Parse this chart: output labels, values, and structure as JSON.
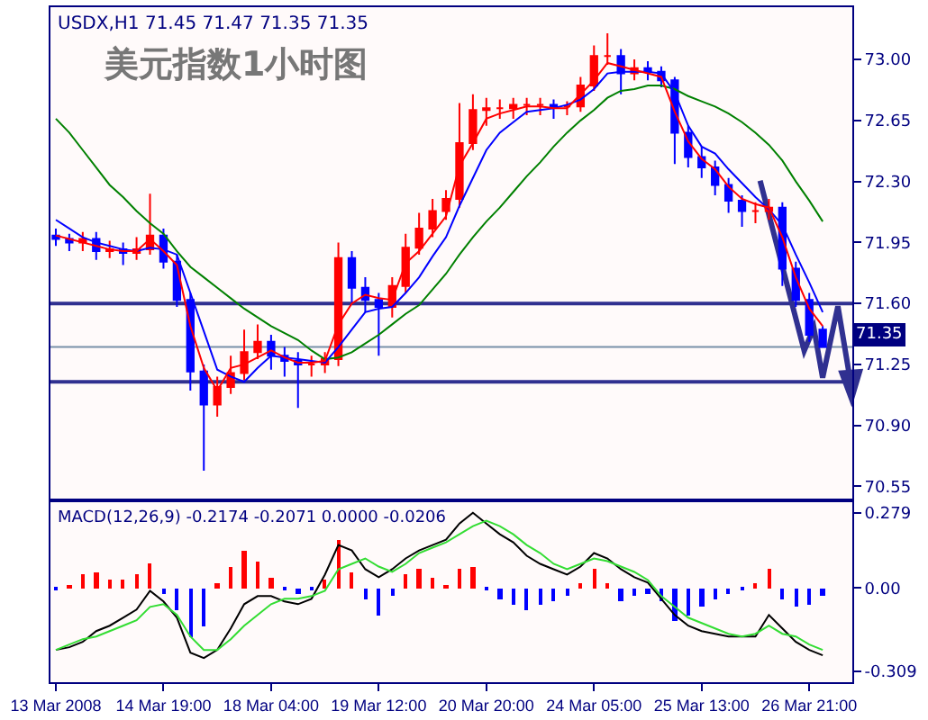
{
  "chart_data": [
    {
      "type": "candlestick",
      "title": "美元指数1小时图",
      "subtitle": "USDX,H1 71.45 71.47 71.35 71.35",
      "categories": [
        null,
        null,
        null,
        null,
        null,
        null,
        null,
        null,
        null,
        null,
        null,
        null,
        null,
        null,
        null,
        null,
        null,
        null,
        null,
        null,
        null,
        null,
        null,
        null,
        null,
        null,
        null,
        null,
        null,
        null,
        null,
        null,
        null,
        null,
        null,
        null,
        null,
        null,
        null,
        null,
        null,
        null,
        null,
        null,
        null,
        null,
        null,
        null,
        null,
        null,
        null,
        null,
        null,
        null,
        null,
        null,
        null,
        null
      ],
      "ohlc": [
        [
          71.99,
          72.03,
          71.93,
          71.97
        ],
        [
          71.97,
          72.0,
          71.9,
          71.95
        ],
        [
          71.95,
          72.01,
          71.9,
          71.97
        ],
        [
          71.97,
          72.01,
          71.85,
          71.9
        ],
        [
          71.9,
          71.96,
          71.86,
          71.91
        ],
        [
          71.91,
          71.95,
          71.82,
          71.89
        ],
        [
          71.89,
          71.98,
          71.85,
          71.91
        ],
        [
          71.91,
          72.23,
          71.88,
          71.99
        ],
        [
          71.99,
          72.03,
          71.8,
          71.84
        ],
        [
          71.84,
          71.88,
          71.58,
          71.62
        ],
        [
          71.62,
          71.66,
          71.1,
          71.21
        ],
        [
          71.21,
          71.25,
          70.64,
          71.02
        ],
        [
          71.02,
          71.18,
          70.95,
          71.12
        ],
        [
          71.12,
          71.3,
          71.08,
          71.2
        ],
        [
          71.2,
          71.45,
          71.16,
          71.32
        ],
        [
          71.32,
          71.48,
          71.28,
          71.38
        ],
        [
          71.38,
          71.42,
          71.22,
          71.3
        ],
        [
          71.3,
          71.35,
          71.18,
          71.27
        ],
        [
          71.27,
          71.32,
          71.0,
          71.25
        ],
        [
          71.25,
          71.3,
          71.18,
          71.25
        ],
        [
          71.25,
          71.32,
          71.2,
          71.28
        ],
        [
          71.28,
          71.95,
          71.24,
          71.86
        ],
        [
          71.86,
          71.9,
          71.6,
          71.69
        ],
        [
          71.69,
          71.75,
          71.55,
          71.62
        ],
        [
          71.62,
          71.66,
          71.3,
          71.58
        ],
        [
          71.58,
          71.75,
          71.52,
          71.7
        ],
        [
          71.7,
          72.0,
          71.66,
          71.92
        ],
        [
          71.92,
          72.12,
          71.88,
          72.03
        ],
        [
          72.03,
          72.2,
          71.98,
          72.13
        ],
        [
          72.13,
          72.25,
          72.08,
          72.2
        ],
        [
          72.2,
          72.75,
          72.15,
          72.52
        ],
        [
          72.52,
          72.8,
          72.48,
          72.71
        ],
        [
          72.71,
          72.78,
          72.62,
          72.72
        ],
        [
          72.72,
          72.77,
          72.66,
          72.72
        ],
        [
          72.72,
          72.78,
          72.66,
          72.74
        ],
        [
          72.74,
          72.78,
          72.68,
          72.74
        ],
        [
          72.74,
          72.78,
          72.68,
          72.74
        ],
        [
          72.74,
          72.77,
          72.66,
          72.73
        ],
        [
          72.73,
          72.76,
          72.68,
          72.73
        ],
        [
          72.73,
          72.9,
          72.7,
          72.85
        ],
        [
          72.85,
          73.08,
          72.82,
          73.02
        ],
        [
          73.02,
          73.15,
          72.97,
          73.02
        ],
        [
          73.02,
          73.06,
          72.8,
          72.92
        ],
        [
          72.92,
          73.0,
          72.88,
          72.95
        ],
        [
          72.95,
          72.99,
          72.88,
          72.93
        ],
        [
          72.93,
          72.96,
          72.84,
          72.88
        ],
        [
          72.88,
          72.9,
          72.4,
          72.58
        ],
        [
          72.58,
          72.62,
          72.38,
          72.44
        ],
        [
          72.44,
          72.5,
          72.32,
          72.38
        ],
        [
          72.38,
          72.42,
          72.22,
          72.28
        ],
        [
          72.28,
          72.32,
          72.12,
          72.19
        ],
        [
          72.19,
          72.22,
          72.04,
          72.13
        ],
        [
          72.13,
          72.18,
          72.06,
          72.13
        ],
        [
          72.13,
          72.2,
          72.08,
          72.15
        ],
        [
          72.15,
          72.18,
          71.7,
          71.8
        ],
        [
          71.8,
          71.84,
          71.58,
          71.62
        ],
        [
          71.62,
          71.66,
          71.38,
          71.42
        ],
        [
          71.45,
          71.47,
          71.35,
          71.35
        ]
      ],
      "colors": [
        "#0000ff",
        "#0000ff",
        "#ff0000",
        "#0000ff",
        "#ff0000",
        "#0000ff",
        "#ff0000",
        "#ff0000",
        "#0000ff",
        "#0000ff",
        "#0000ff",
        "#0000ff",
        "#ff0000",
        "#ff0000",
        "#ff0000",
        "#ff0000",
        "#0000ff",
        "#0000ff",
        "#0000ff",
        "#ff0000",
        "#ff0000",
        "#ff0000",
        "#0000ff",
        "#0000ff",
        "#0000ff",
        "#ff0000",
        "#ff0000",
        "#ff0000",
        "#ff0000",
        "#ff0000",
        "#ff0000",
        "#ff0000",
        "#ff0000",
        "#ff0000",
        "#ff0000",
        "#ff0000",
        "#ff0000",
        "#0000ff",
        "#ff0000",
        "#ff0000",
        "#ff0000",
        "#ff0000",
        "#0000ff",
        "#ff0000",
        "#0000ff",
        "#0000ff",
        "#0000ff",
        "#0000ff",
        "#0000ff",
        "#0000ff",
        "#0000ff",
        "#0000ff",
        "#ff0000",
        "#ff0000",
        "#0000ff",
        "#0000ff",
        "#0000ff",
        "#0000ff"
      ],
      "series": [
        {
          "type": "line",
          "color": "#008000",
          "values": [
            72.66,
            72.58,
            72.48,
            72.38,
            72.28,
            72.21,
            72.13,
            72.06,
            72.0,
            71.9,
            71.81,
            71.75,
            71.69,
            71.63,
            71.57,
            71.52,
            71.47,
            71.43,
            71.39,
            71.33,
            71.28,
            71.29,
            71.32,
            71.37,
            71.42,
            71.48,
            71.54,
            71.59,
            71.68,
            71.77,
            71.88,
            71.98,
            72.07,
            72.15,
            72.24,
            72.33,
            72.41,
            72.5,
            72.58,
            72.65,
            72.71,
            72.78,
            72.82,
            72.83,
            72.85,
            72.85,
            72.83,
            72.79,
            72.76,
            72.73,
            72.69,
            72.64,
            72.58,
            72.51,
            72.42,
            72.3,
            72.19,
            72.07
          ]
        },
        {
          "type": "line",
          "color": "#0000ff",
          "values": [
            72.08,
            72.03,
            71.98,
            71.95,
            71.93,
            71.91,
            71.9,
            71.92,
            71.91,
            71.88,
            71.66,
            71.44,
            71.22,
            71.18,
            71.15,
            71.23,
            71.3,
            71.29,
            71.28,
            71.27,
            71.26,
            71.35,
            71.45,
            71.55,
            71.57,
            71.58,
            71.66,
            71.75,
            71.87,
            71.98,
            72.16,
            72.32,
            72.48,
            72.58,
            72.64,
            72.7,
            72.71,
            72.72,
            72.74,
            72.77,
            72.83,
            72.92,
            72.93,
            72.93,
            72.93,
            72.92,
            72.81,
            72.62,
            72.5,
            72.46,
            72.37,
            72.29,
            72.21,
            72.14,
            72.05,
            71.88,
            71.72,
            71.55
          ]
        },
        {
          "type": "line",
          "color": "#ff0000",
          "values": [
            71.99,
            71.97,
            71.95,
            71.93,
            71.91,
            71.9,
            71.9,
            71.97,
            71.9,
            71.82,
            71.47,
            71.23,
            71.1,
            71.23,
            71.25,
            71.29,
            71.33,
            71.29,
            71.26,
            71.26,
            71.27,
            71.48,
            71.6,
            71.65,
            71.63,
            71.62,
            71.83,
            71.9,
            72.0,
            72.1,
            72.39,
            72.52,
            72.66,
            72.69,
            72.71,
            72.73,
            72.73,
            72.72,
            72.72,
            72.8,
            72.88,
            72.98,
            72.96,
            72.94,
            72.92,
            72.9,
            72.7,
            72.53,
            72.43,
            72.37,
            72.27,
            72.2,
            72.17,
            72.15,
            71.98,
            71.75,
            71.57,
            71.47
          ]
        }
      ],
      "ref_lines": [
        {
          "axis": "y",
          "value": 71.6,
          "color": "#303090"
        },
        {
          "axis": "y",
          "value": 71.15,
          "color": "#303090"
        },
        {
          "axis": "y",
          "value": 71.35,
          "label": "71.35",
          "color": "#7890a8"
        }
      ],
      "ylim": [
        70.48,
        73.3
      ],
      "yticks": [
        {
          "value": 73,
          "label": "73.00"
        },
        {
          "value": 72.65,
          "label": "72.65"
        },
        {
          "value": 72.3,
          "label": "72.30"
        },
        {
          "value": 71.95,
          "label": "71.95"
        },
        {
          "value": 71.6,
          "label": "71.60"
        },
        {
          "value": 71.25,
          "label": "71.25"
        },
        {
          "value": 70.9,
          "label": "70.90"
        },
        {
          "value": 70.55,
          "label": "70.55"
        }
      ],
      "tick_labels": "y"
    },
    {
      "type": "bar",
      "title": "MACD(12,26,9) -0.2174 -0.2071 0.0000 -0.0206",
      "categories": [
        "13 Mar 2008",
        null,
        null,
        null,
        null,
        null,
        null,
        null,
        "14 Mar 19:00",
        null,
        null,
        null,
        null,
        null,
        null,
        null,
        "18 Mar 04:00",
        null,
        null,
        null,
        null,
        null,
        null,
        null,
        "19 Mar 12:00",
        null,
        null,
        null,
        null,
        null,
        null,
        null,
        "20 Mar 20:00",
        null,
        null,
        null,
        null,
        null,
        null,
        null,
        "24 Mar 05:00",
        null,
        null,
        null,
        null,
        null,
        null,
        null,
        "25 Mar 13:00",
        null,
        null,
        null,
        null,
        null,
        null,
        null,
        "26 Mar 21:00",
        null
      ],
      "values": [
        -0.01,
        0.01,
        0.05,
        0.06,
        0.03,
        0.03,
        0.05,
        0.09,
        -0.02,
        -0.08,
        -0.18,
        -0.14,
        0.02,
        0.08,
        0.14,
        0.1,
        0.04,
        -0.01,
        -0.02,
        -0.01,
        0.03,
        0.18,
        0.06,
        -0.04,
        -0.1,
        -0.03,
        0.05,
        0.07,
        0.04,
        0.01,
        0.07,
        0.08,
        -0.01,
        -0.04,
        -0.06,
        -0.08,
        -0.06,
        -0.05,
        -0.03,
        0.02,
        0.07,
        0.02,
        -0.05,
        -0.03,
        -0.02,
        -0.05,
        -0.12,
        -0.1,
        -0.07,
        -0.04,
        -0.02,
        -0.01,
        0.02,
        0.07,
        -0.04,
        -0.07,
        -0.06,
        -0.03
      ],
      "colors": [
        "#0000ff",
        "#ff0000",
        "#ff0000",
        "#ff0000",
        "#ff0000",
        "#ff0000",
        "#ff0000",
        "#ff0000",
        "#0000ff",
        "#0000ff",
        "#0000ff",
        "#0000ff",
        "#ff0000",
        "#ff0000",
        "#ff0000",
        "#ff0000",
        "#ff0000",
        "#0000ff",
        "#0000ff",
        "#0000ff",
        "#ff0000",
        "#ff0000",
        "#ff0000",
        "#0000ff",
        "#0000ff",
        "#0000ff",
        "#ff0000",
        "#ff0000",
        "#ff0000",
        "#ff0000",
        "#ff0000",
        "#ff0000",
        "#0000ff",
        "#0000ff",
        "#0000ff",
        "#0000ff",
        "#0000ff",
        "#0000ff",
        "#0000ff",
        "#ff0000",
        "#ff0000",
        "#ff0000",
        "#0000ff",
        "#0000ff",
        "#0000ff",
        "#0000ff",
        "#0000ff",
        "#0000ff",
        "#0000ff",
        "#0000ff",
        "#0000ff",
        "#0000ff",
        "#ff0000",
        "#ff0000",
        "#0000ff",
        "#0000ff",
        "#0000ff",
        "#0000ff"
      ],
      "series": [
        {
          "type": "line",
          "color": "#000000",
          "values": [
            -0.23,
            -0.22,
            -0.2,
            -0.16,
            -0.14,
            -0.11,
            -0.08,
            -0.01,
            -0.05,
            -0.11,
            -0.24,
            -0.26,
            -0.23,
            -0.15,
            -0.06,
            -0.03,
            -0.03,
            -0.05,
            -0.06,
            -0.04,
            0.05,
            0.16,
            0.14,
            0.07,
            0.04,
            0.07,
            0.11,
            0.14,
            0.16,
            0.18,
            0.24,
            0.28,
            0.24,
            0.2,
            0.17,
            0.12,
            0.09,
            0.07,
            0.05,
            0.08,
            0.13,
            0.11,
            0.07,
            0.04,
            0.02,
            -0.04,
            -0.1,
            -0.14,
            -0.16,
            -0.17,
            -0.18,
            -0.18,
            -0.18,
            -0.1,
            -0.15,
            -0.2,
            -0.23,
            -0.25
          ]
        },
        {
          "type": "line",
          "color": "#33dd33",
          "values": [
            -0.23,
            -0.21,
            -0.19,
            -0.18,
            -0.16,
            -0.14,
            -0.12,
            -0.07,
            -0.06,
            -0.1,
            -0.18,
            -0.23,
            -0.23,
            -0.19,
            -0.14,
            -0.1,
            -0.06,
            -0.04,
            -0.04,
            -0.03,
            -0.01,
            0.07,
            0.09,
            0.11,
            0.08,
            0.06,
            0.09,
            0.13,
            0.15,
            0.17,
            0.2,
            0.23,
            0.25,
            0.23,
            0.2,
            0.16,
            0.13,
            0.09,
            0.07,
            0.09,
            0.11,
            0.1,
            0.08,
            0.06,
            0.03,
            -0.03,
            -0.07,
            -0.11,
            -0.13,
            -0.15,
            -0.17,
            -0.18,
            -0.17,
            -0.14,
            -0.17,
            -0.18,
            -0.21,
            -0.23
          ]
        }
      ],
      "ylim": [
        -0.35,
        0.32
      ],
      "yticks": [
        0.279,
        {
          "value": 0,
          "label": "0.00"
        },
        -0.309
      ]
    }
  ]
}
